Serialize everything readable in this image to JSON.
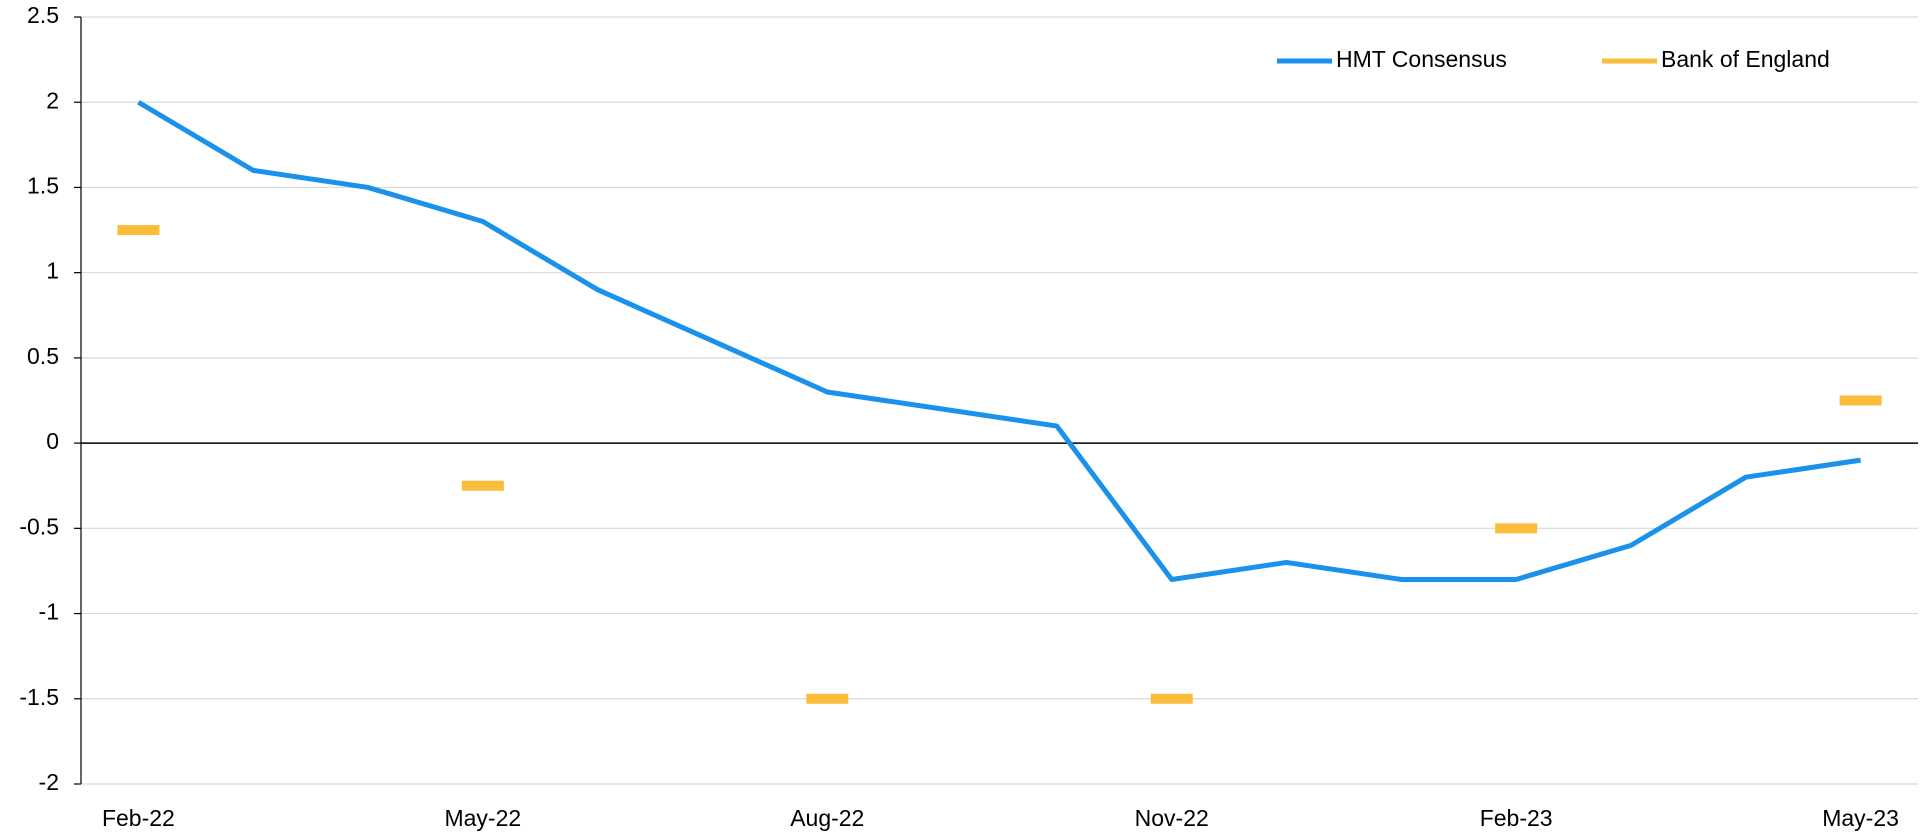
{
  "chart_data": {
    "type": "line",
    "categories": [
      "Feb-22",
      null,
      null,
      "May-22",
      null,
      null,
      "Aug-22",
      null,
      null,
      "Nov-22",
      null,
      null,
      "Feb-23",
      null,
      null,
      "May-23"
    ],
    "series": [
      {
        "name": "HMT Consensus",
        "color": "#1a91eb",
        "style": "line",
        "values": [
          2.0,
          1.6,
          1.5,
          1.3,
          0.9,
          0.6,
          0.3,
          0.2,
          0.1,
          -0.8,
          -0.7,
          -0.8,
          -0.8,
          -0.6,
          -0.2,
          -0.1
        ]
      },
      {
        "name": "Bank of England",
        "color": "#fbbc3a",
        "style": "dash",
        "values": [
          1.25,
          null,
          null,
          -0.25,
          null,
          null,
          -1.5,
          null,
          null,
          -1.5,
          null,
          null,
          -0.5,
          null,
          null,
          0.25
        ]
      }
    ],
    "ylim": [
      -2,
      2.5
    ],
    "yticks": [
      -2,
      -1.5,
      -1,
      -0.5,
      0,
      0.5,
      1,
      1.5,
      2,
      2.5
    ],
    "grid": true,
    "legend": "top-right"
  }
}
